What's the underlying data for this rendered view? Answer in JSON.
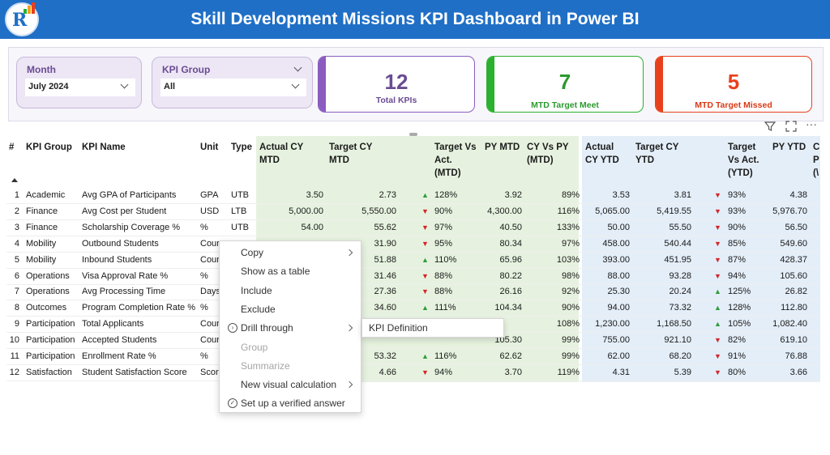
{
  "header": {
    "title": "Skill Development Missions KPI Dashboard in Power BI",
    "brand_color": "#1f6fc6"
  },
  "slicers": {
    "month": {
      "label": "Month",
      "value": "July 2024"
    },
    "kpi_group": {
      "label": "KPI Group",
      "value": "All"
    }
  },
  "cards": {
    "total": {
      "value": "12",
      "label": "Total KPIs",
      "color": "#8a5cc0"
    },
    "met": {
      "value": "7",
      "label": "MTD Target Meet",
      "color": "#2bb02f"
    },
    "missed": {
      "value": "5",
      "label": "MTD Target Missed",
      "color": "#e8401c"
    }
  },
  "visual_icons": {
    "filter": "filter-icon",
    "focus": "focus-mode-icon",
    "more": "···"
  },
  "table": {
    "headers": {
      "num": "#",
      "group": "KPI Group",
      "name": "KPI Name",
      "unit": "Unit",
      "type": "Type",
      "actual_mtd": "Actual CY\nMTD",
      "target_mtd": "Target CY\nMTD",
      "tva_mtd": "Target Vs\nAct.\n(MTD)",
      "py_mtd": "PY MTD",
      "cy_vs_py_mtd": "CY Vs PY\n(MTD)",
      "actual_ytd": "Actual\nCY YTD",
      "target_ytd": "Target CY\nYTD",
      "tva_ytd": "Target\nVs Act.\n(YTD)",
      "py_ytd": "PY YTD",
      "cut": "C\nP\n(\\"
    },
    "rows": [
      {
        "n": "1",
        "group": "Academic",
        "name": "Avg GPA of Participants",
        "unit": "GPA",
        "type": "UTB",
        "a_mtd": "3.50",
        "t_mtd": "2.73",
        "d_mtd": "up",
        "p_mtd": "128%",
        "py_mtd": "3.92",
        "cvp": "89%",
        "a_ytd": "3.53",
        "t_ytd": "3.81",
        "d_ytd": "down",
        "p_ytd": "93%",
        "py_ytd": "4.38"
      },
      {
        "n": "2",
        "group": "Finance",
        "name": "Avg Cost per Student",
        "unit": "USD",
        "type": "LTB",
        "a_mtd": "5,000.00",
        "t_mtd": "5,550.00",
        "d_mtd": "down",
        "p_mtd": "90%",
        "py_mtd": "4,300.00",
        "cvp": "116%",
        "a_ytd": "5,065.00",
        "t_ytd": "5,419.55",
        "d_ytd": "down",
        "p_ytd": "93%",
        "py_ytd": "5,976.70"
      },
      {
        "n": "3",
        "group": "Finance",
        "name": "Scholarship Coverage %",
        "unit": "%",
        "type": "UTB",
        "a_mtd": "54.00",
        "t_mtd": "55.62",
        "d_mtd": "down",
        "p_mtd": "97%",
        "py_mtd": "40.50",
        "cvp": "133%",
        "a_ytd": "50.00",
        "t_ytd": "55.50",
        "d_ytd": "down",
        "p_ytd": "90%",
        "py_ytd": "56.50"
      },
      {
        "n": "4",
        "group": "Mobility",
        "name": "Outbound Students",
        "unit": "Cour",
        "type": "",
        "a_mtd": "",
        "t_mtd": "31.90",
        "d_mtd": "down",
        "p_mtd": "95%",
        "py_mtd": "80.34",
        "cvp": "97%",
        "a_ytd": "458.00",
        "t_ytd": "540.44",
        "d_ytd": "down",
        "p_ytd": "85%",
        "py_ytd": "549.60"
      },
      {
        "n": "5",
        "group": "Mobility",
        "name": "Inbound Students",
        "unit": "Cour",
        "type": "",
        "a_mtd": "",
        "t_mtd": "51.88",
        "d_mtd": "up",
        "p_mtd": "110%",
        "py_mtd": "65.96",
        "cvp": "103%",
        "a_ytd": "393.00",
        "t_ytd": "451.95",
        "d_ytd": "down",
        "p_ytd": "87%",
        "py_ytd": "428.37"
      },
      {
        "n": "6",
        "group": "Operations",
        "name": "Visa Approval Rate %",
        "unit": "%",
        "type": "",
        "a_mtd": "",
        "t_mtd": "31.46",
        "d_mtd": "down",
        "p_mtd": "88%",
        "py_mtd": "80.22",
        "cvp": "98%",
        "a_ytd": "88.00",
        "t_ytd": "93.28",
        "d_ytd": "down",
        "p_ytd": "94%",
        "py_ytd": "105.60"
      },
      {
        "n": "7",
        "group": "Operations",
        "name": "Avg Processing Time",
        "unit": "Days",
        "type": "",
        "a_mtd": "",
        "t_mtd": "27.36",
        "d_mtd": "down",
        "p_mtd": "88%",
        "py_mtd": "26.16",
        "cvp": "92%",
        "a_ytd": "25.30",
        "t_ytd": "20.24",
        "d_ytd": "up",
        "p_ytd": "125%",
        "py_ytd": "26.82"
      },
      {
        "n": "8",
        "group": "Outcomes",
        "name": "Program Completion Rate %",
        "unit": "%",
        "type": "",
        "a_mtd": "",
        "t_mtd": "34.60",
        "d_mtd": "up",
        "p_mtd": "111%",
        "py_mtd": "104.34",
        "cvp": "90%",
        "a_ytd": "94.00",
        "t_ytd": "73.32",
        "d_ytd": "up",
        "p_ytd": "128%",
        "py_ytd": "112.80"
      },
      {
        "n": "9",
        "group": "Participation",
        "name": "Total Applicants",
        "unit": "Cour",
        "type": "",
        "a_mtd": "",
        "t_mtd": "45.30",
        "d_mtd": "",
        "p_mtd": "",
        "py_mtd": "",
        "cvp": "108%",
        "a_ytd": "1,230.00",
        "t_ytd": "1,168.50",
        "d_ytd": "up",
        "p_ytd": "105%",
        "py_ytd": "1,082.40"
      },
      {
        "n": "10",
        "group": "Participation",
        "name": "Accepted Students",
        "unit": "Cour",
        "type": "",
        "a_mtd": "",
        "t_mtd": "",
        "d_mtd": "",
        "p_mtd": "",
        "py_mtd": "105.30",
        "cvp": "99%",
        "a_ytd": "755.00",
        "t_ytd": "921.10",
        "d_ytd": "down",
        "p_ytd": "82%",
        "py_ytd": "619.10"
      },
      {
        "n": "11",
        "group": "Participation",
        "name": "Enrollment Rate %",
        "unit": "%",
        "type": "",
        "a_mtd": "",
        "t_mtd": "53.32",
        "d_mtd": "up",
        "p_mtd": "116%",
        "py_mtd": "62.62",
        "cvp": "99%",
        "a_ytd": "62.00",
        "t_ytd": "68.20",
        "d_ytd": "down",
        "p_ytd": "91%",
        "py_ytd": "76.88"
      },
      {
        "n": "12",
        "group": "Satisfaction",
        "name": "Student Satisfaction Score",
        "unit": "Scor",
        "type": "",
        "a_mtd": "",
        "t_mtd": "4.66",
        "d_mtd": "down",
        "p_mtd": "94%",
        "py_mtd": "3.70",
        "cvp": "119%",
        "a_ytd": "4.31",
        "t_ytd": "5.39",
        "d_ytd": "down",
        "p_ytd": "80%",
        "py_ytd": "3.66"
      }
    ]
  },
  "context_menu": {
    "items": [
      {
        "label": "Copy",
        "enabled": true,
        "submenu": true
      },
      {
        "label": "Show as a table",
        "enabled": true
      },
      {
        "label": "Include",
        "enabled": true
      },
      {
        "label": "Exclude",
        "enabled": true
      },
      {
        "label": "Drill through",
        "enabled": true,
        "submenu": true
      },
      {
        "label": "Group",
        "enabled": false
      },
      {
        "label": "Summarize",
        "enabled": false
      },
      {
        "label": "New visual calculation",
        "enabled": true,
        "submenu": true
      },
      {
        "label": "Set up a verified answer",
        "enabled": true
      }
    ],
    "submenu_item": "KPI Definition"
  }
}
